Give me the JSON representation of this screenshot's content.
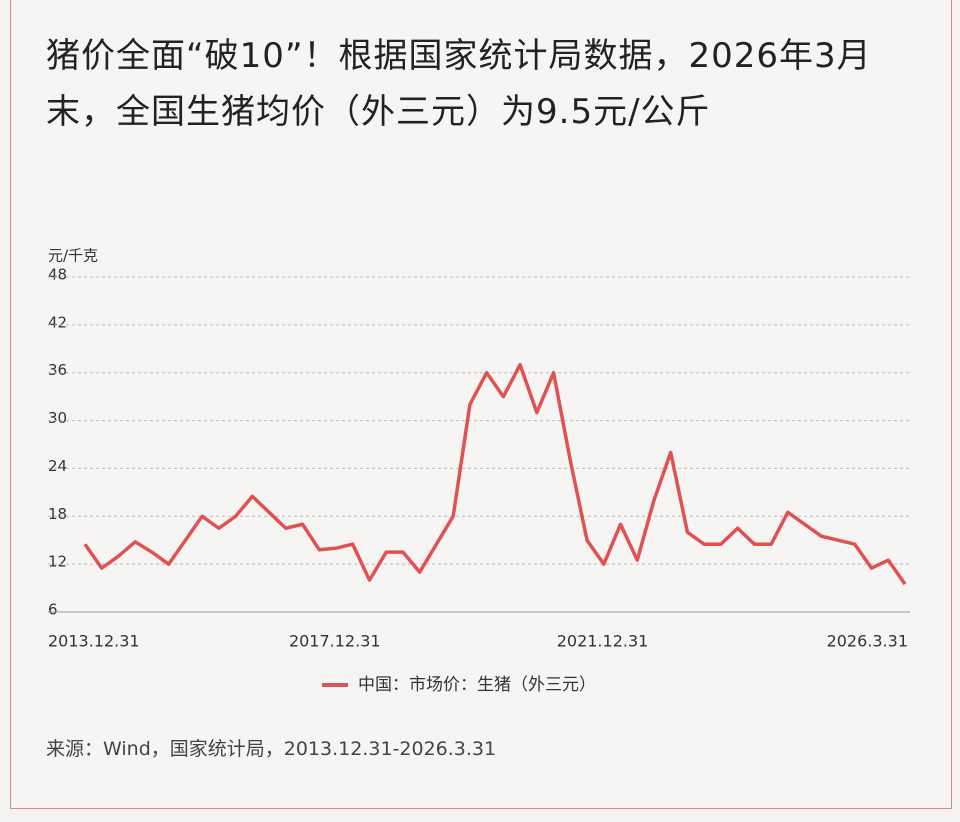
{
  "chart_data": {
    "type": "line",
    "title": "猪价全面“破10”！根据国家统计局数据，2026年3月末，全国生猪均价（外三元）为9.5元/公斤",
    "y_label": "元/千克",
    "source": "来源：Wind，国家统计局，2013.12.31-2026.3.31",
    "categories": [
      "2013.12.31",
      null,
      null,
      null,
      null,
      null,
      null,
      null,
      null,
      null,
      null,
      null,
      null,
      null,
      null,
      null,
      "2017.12.31",
      null,
      null,
      null,
      null,
      null,
      null,
      null,
      null,
      null,
      null,
      null,
      null,
      null,
      null,
      null,
      "2021.12.31",
      null,
      null,
      null,
      null,
      null,
      null,
      null,
      null,
      null,
      null,
      null,
      null,
      null,
      null,
      null,
      null,
      "2026.3.31"
    ],
    "series": [
      {
        "name": "中国：市场价：生猪（外三元）",
        "color": "#e05252",
        "values": [
          14.5,
          11.5,
          13,
          14.8,
          13.5,
          12,
          15,
          18,
          16.5,
          18,
          20.5,
          18.5,
          16.5,
          17,
          13.8,
          14,
          14.5,
          10,
          13.5,
          13.5,
          11,
          14.5,
          18,
          32,
          36,
          33,
          37,
          31,
          36,
          25,
          15,
          12,
          17,
          12.5,
          20,
          26,
          16,
          14.5,
          14.5,
          16.5,
          14.5,
          14.5,
          18.5,
          17,
          15.5,
          15,
          14.5,
          11.5,
          12.5,
          9.5
        ]
      }
    ],
    "ylim": [
      6,
      48
    ],
    "yticks": [
      6,
      12,
      18,
      24,
      30,
      36,
      42,
      48
    ],
    "grid": true,
    "legend": "bottom"
  }
}
